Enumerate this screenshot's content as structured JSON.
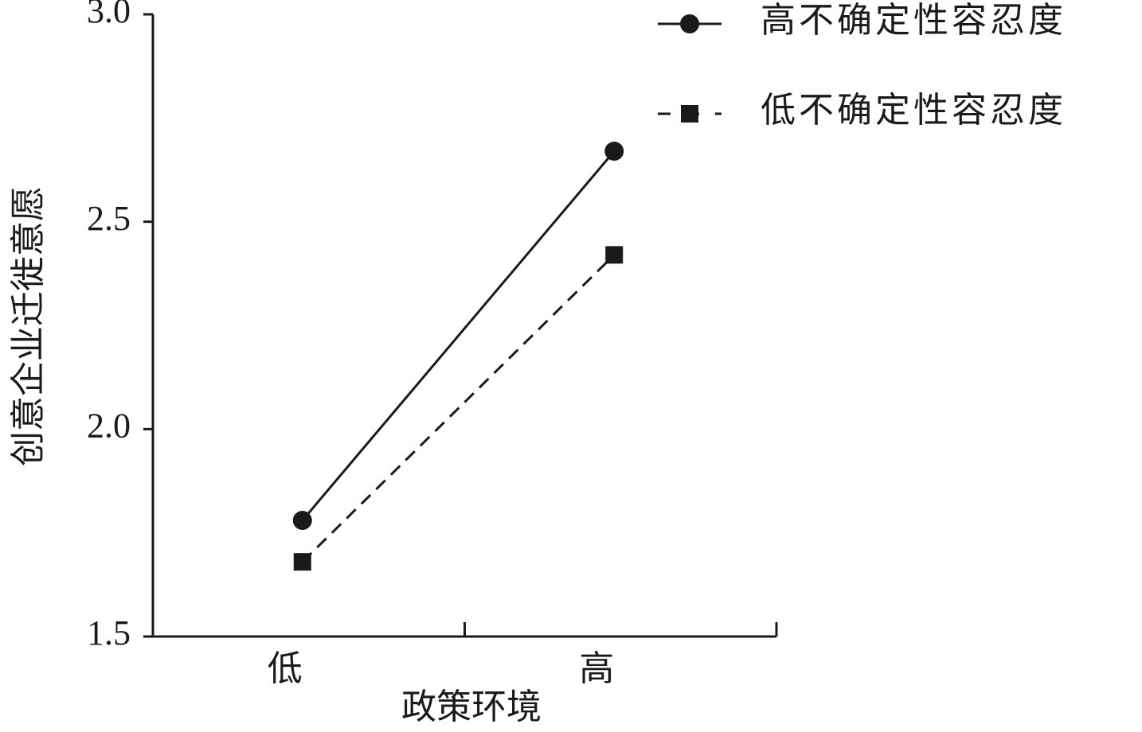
{
  "chart_data": {
    "type": "line",
    "x_label": "政策环境",
    "y_label": "创意企业迁徙意愿",
    "categories": [
      "低",
      "高"
    ],
    "series": [
      {
        "name": "高不确定性容忍度",
        "color": "#1a1a1a",
        "line_style": "solid",
        "marker": "circle",
        "values": [
          1.78,
          2.67
        ]
      },
      {
        "name": "低不确定性容忍度",
        "color": "#1a1a1a",
        "line_style": "dashed",
        "marker": "square",
        "values": [
          1.68,
          2.42
        ]
      }
    ],
    "ylim": [
      1.5,
      3.0
    ],
    "yticks": [
      1.5,
      {
        "value": 2.0,
        "label": "2.0"
      },
      2.5,
      {
        "value": 3.0,
        "label": "3.0"
      }
    ],
    "grid": false,
    "legend": "top-right"
  }
}
